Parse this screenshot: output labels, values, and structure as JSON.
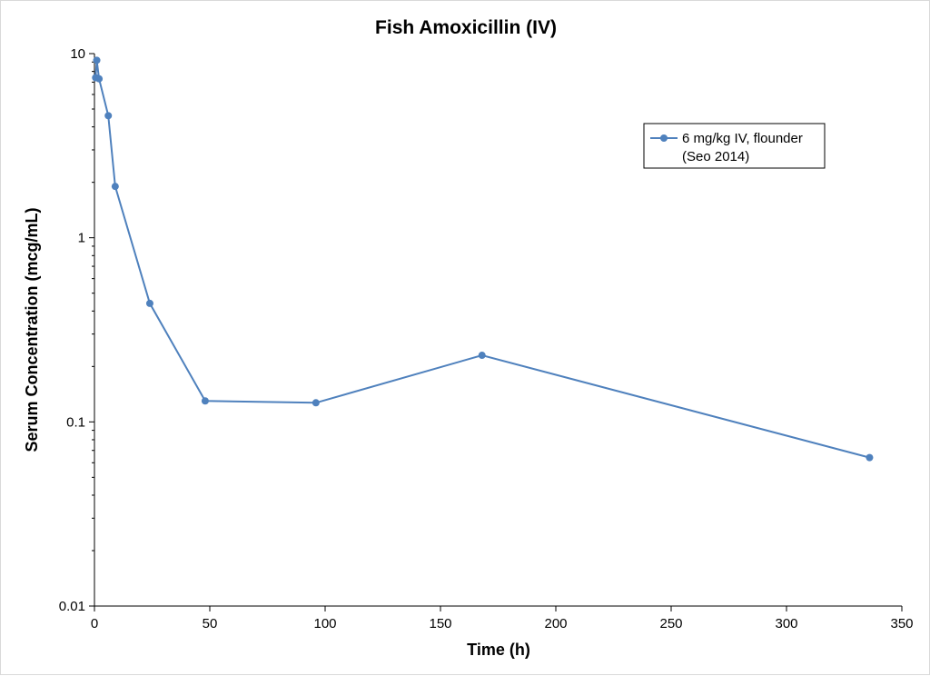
{
  "chart_data": {
    "type": "line",
    "title": "Fish Amoxicillin (IV)",
    "xlabel": "Time (h)",
    "ylabel": "Serum Concentration (mcg/mL)",
    "xlim": [
      0,
      350
    ],
    "ylim": [
      0.01,
      10
    ],
    "y_scale": "log",
    "x_ticks": [
      0,
      50,
      100,
      150,
      200,
      250,
      300,
      350
    ],
    "x_tick_labels": [
      "0",
      "50",
      "100",
      "150",
      "200",
      "250",
      "300",
      "350"
    ],
    "y_ticks": [
      0.01,
      0.1,
      1,
      10
    ],
    "y_tick_labels": [
      "0.01",
      "0.1",
      "1",
      "10"
    ],
    "grid": false,
    "legend_position": "top-right",
    "series": [
      {
        "name_lines": [
          "6 mg/kg IV, flounder",
          "(Seo 2014)"
        ],
        "color": "#4f81bd",
        "x": [
          0.5,
          1,
          2,
          6,
          9,
          24,
          48,
          96,
          168,
          336
        ],
        "y": [
          7.4,
          9.2,
          7.3,
          4.6,
          1.9,
          0.44,
          0.13,
          0.127,
          0.23,
          0.064
        ]
      }
    ]
  }
}
